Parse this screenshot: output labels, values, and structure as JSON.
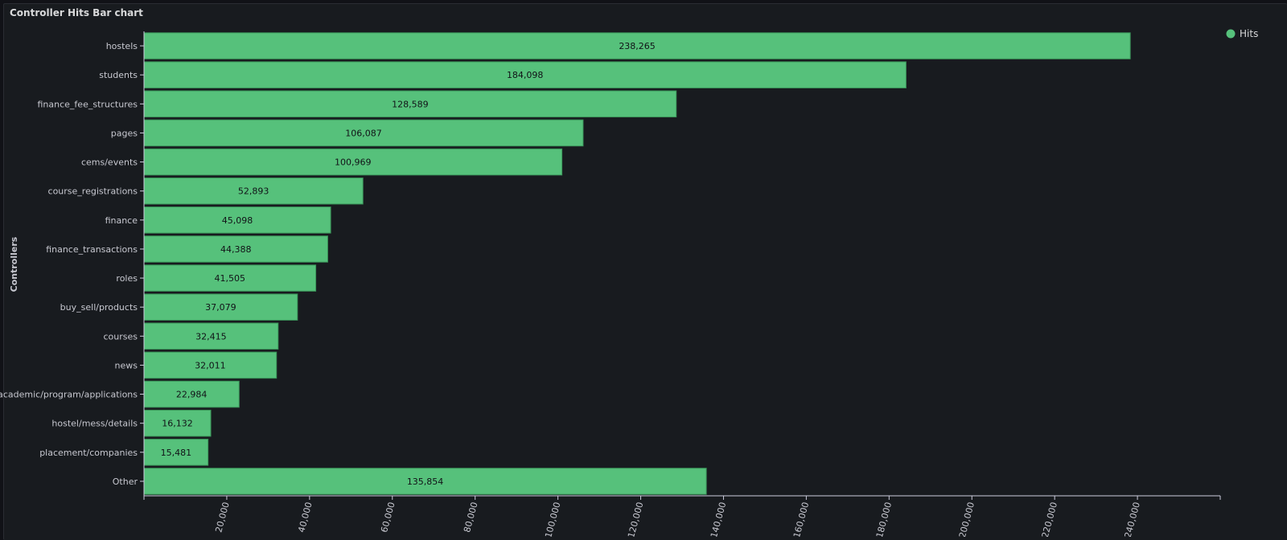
{
  "panel": {
    "title": "Controller Hits Bar chart"
  },
  "colors": {
    "bar": "#56c17b",
    "bar_border": "#3a9459",
    "axis": "#ccccdc",
    "text": "#c7c8d0",
    "background": "#181b1f"
  },
  "chart_data": {
    "type": "bar",
    "orientation": "horizontal",
    "categories": [
      "hostels",
      "students",
      "finance_fee_structures",
      "pages",
      "cems/events",
      "course_registrations",
      "finance",
      "finance_transactions",
      "roles",
      "buy_sell/products",
      "courses",
      "news",
      "academic/program/applications",
      "hostel/mess/details",
      "placement/companies",
      "Other"
    ],
    "series": [
      {
        "name": "Hits",
        "values": [
          238265,
          184098,
          128589,
          106087,
          100969,
          52893,
          45098,
          44388,
          41505,
          37079,
          32415,
          32011,
          22984,
          16132,
          15481,
          135854
        ]
      }
    ],
    "value_labels": [
      "238,265",
      "184,098",
      "128,589",
      "106,087",
      "100,969",
      "52,893",
      "45,098",
      "44,388",
      "41,505",
      "37,079",
      "32,415",
      "32,011",
      "22,984",
      "16,132",
      "15,481",
      "135,854"
    ],
    "ylabel": "Controllers",
    "xlim": [
      0,
      260000
    ],
    "x_ticks": [
      20000,
      40000,
      60000,
      80000,
      100000,
      120000,
      140000,
      160000,
      180000,
      200000,
      220000,
      240000
    ],
    "x_tick_labels": [
      "20,000",
      "40,000",
      "60,000",
      "80,000",
      "100,000",
      "120,000",
      "140,000",
      "160,000",
      "180,000",
      "200,000",
      "220,000",
      "240,000"
    ],
    "legend": {
      "placement": "top-right",
      "entries": [
        "Hits"
      ]
    },
    "grid": false
  }
}
